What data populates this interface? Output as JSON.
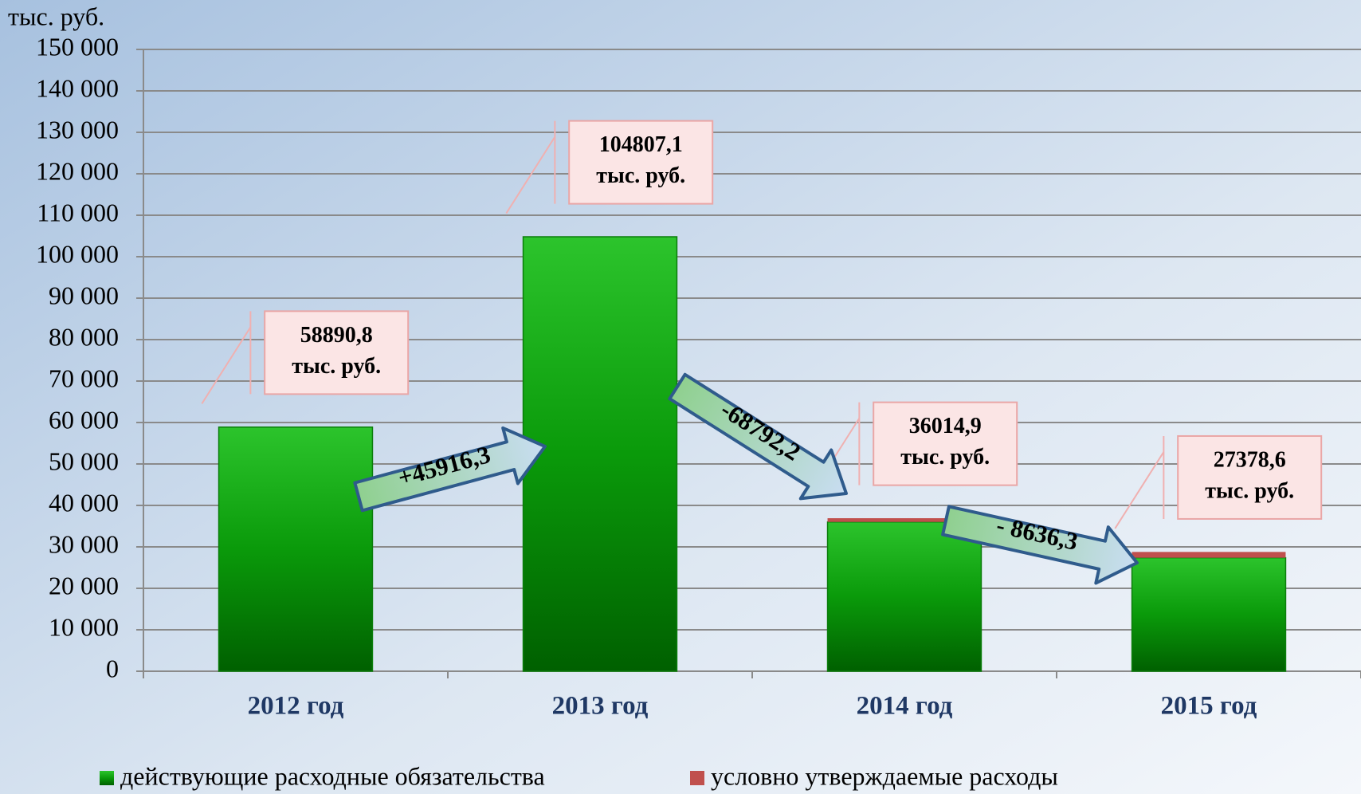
{
  "chart_data": {
    "type": "stacked_bar",
    "y_label": "тыс. руб.",
    "categories": [
      "2012 год",
      "2013 год",
      "2014 год",
      "2015 год"
    ],
    "series": [
      {
        "name": "действующие расходные обязательства",
        "color": "#0a9a0a",
        "values": [
          58890.8,
          104807.1,
          36014.9,
          27378.6
        ],
        "value_labels": [
          "58890,8",
          "104807,1",
          "36014,9",
          "27378,6"
        ]
      },
      {
        "name": "условно утверждаемые расходы",
        "color": "#c0504d",
        "values": [
          null,
          null,
          900,
          1400
        ]
      }
    ],
    "value_label_unit": "тыс. руб.",
    "annotations": [
      {
        "text": "+45916,3"
      },
      {
        "text": "-68792,2"
      },
      {
        "text": "- 8636,3"
      }
    ],
    "ylim": [
      0,
      150000
    ],
    "yticks": [
      0,
      {
        "value": 10000,
        "label": "10 000"
      },
      {
        "value": 20000,
        "label": "20 000"
      },
      {
        "value": 30000,
        "label": "30 000"
      },
      {
        "value": 40000,
        "label": "40 000"
      },
      {
        "value": 50000,
        "label": "50 000"
      },
      {
        "value": 60000,
        "label": "60 000"
      },
      {
        "value": 70000,
        "label": "70 000"
      },
      {
        "value": 80000,
        "label": "80 000"
      },
      {
        "value": 90000,
        "label": "90 000"
      },
      {
        "value": 100000,
        "label": "100 000"
      },
      {
        "value": 110000,
        "label": "110 000"
      },
      {
        "value": 120000,
        "label": "120 000"
      },
      {
        "value": 130000,
        "label": "130 000"
      },
      {
        "value": 140000,
        "label": "140 000"
      },
      {
        "value": 150000,
        "label": "150 000"
      }
    ],
    "grid": true,
    "legend": "bottom"
  }
}
